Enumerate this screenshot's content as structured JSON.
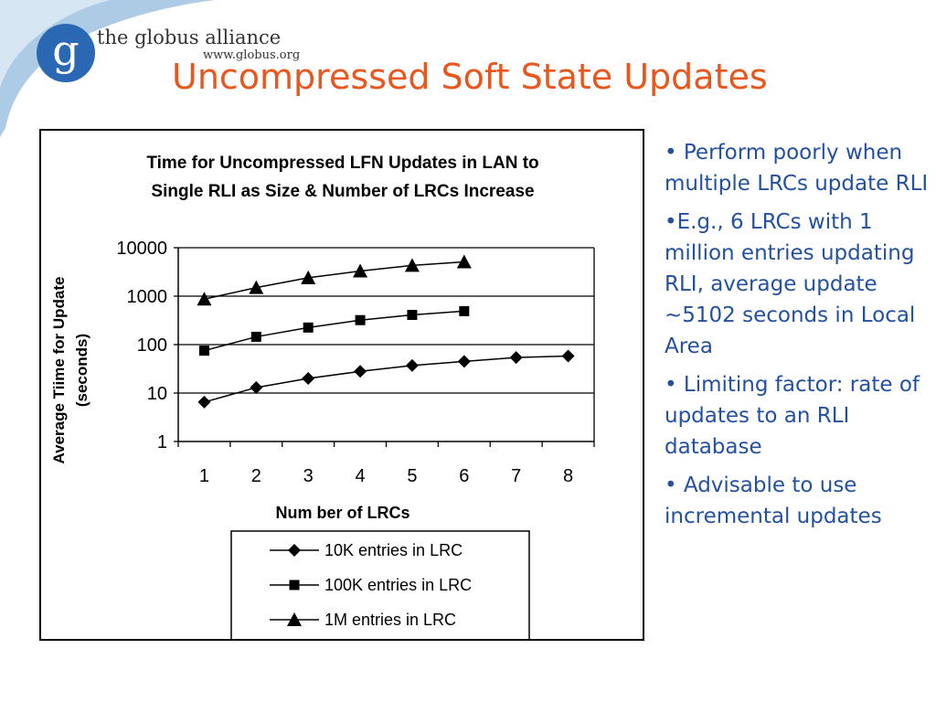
{
  "header": {
    "org_name": "the globus alliance",
    "org_url": "www.globus.org",
    "logo_letter": "g",
    "title": "Uncompressed Soft State Updates"
  },
  "bullets": [
    "• Perform poorly when multiple LRCs update RLI",
    "•E.g., 6 LRCs with 1 million entries updating RLI, average update ~5102 seconds in Local Area",
    "• Limiting factor: rate of updates to an RLI database",
    "• Advisable to use incremental updates"
  ],
  "colors": {
    "title": "#e8571e",
    "bullets": "#2350a0",
    "logo": "#2a68b3"
  },
  "chart_data": {
    "type": "line",
    "title_lines": [
      "Time for Uncompressed LFN Updates in LAN to",
      "Single RLI as Size & Number of LRCs Increase"
    ],
    "xlabel": "Num ber of LRCs",
    "ylabel_lines": [
      "Average Tiime for Update",
      "(seconds)"
    ],
    "y_scale": "log",
    "ylim": [
      1,
      10000
    ],
    "y_ticks": [
      "1",
      "10",
      "100",
      "1000",
      "10000"
    ],
    "x": [
      1,
      2,
      3,
      4,
      5,
      6,
      7,
      8
    ],
    "x_tick_labels": [
      "1",
      "2",
      "3",
      "4",
      "5",
      "6",
      "7",
      "8"
    ],
    "grid": "horizontal major gridlines",
    "legend_position": "bottom",
    "series": [
      {
        "name": "10K entries in LRC",
        "marker": "diamond",
        "x": [
          1,
          2,
          3,
          4,
          5,
          6,
          7,
          8
        ],
        "values": [
          6.5,
          13,
          20,
          28,
          37,
          45,
          54,
          58
        ]
      },
      {
        "name": "100K entries in LRC",
        "marker": "square",
        "x": [
          1,
          2,
          3,
          4,
          5,
          6
        ],
        "values": [
          75,
          145,
          225,
          320,
          410,
          490
        ]
      },
      {
        "name": "1M entries in LRC",
        "marker": "triangle",
        "x": [
          1,
          2,
          3,
          4,
          5,
          6
        ],
        "values": [
          870,
          1500,
          2400,
          3300,
          4300,
          5102
        ]
      }
    ]
  }
}
